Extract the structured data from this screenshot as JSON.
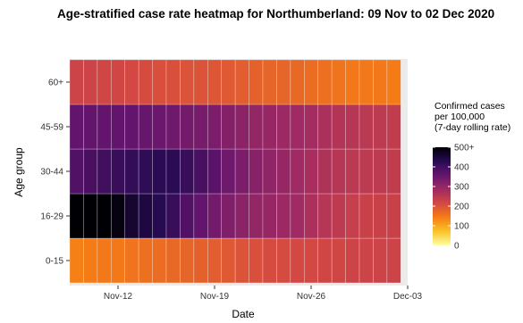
{
  "title": "Age-stratified case rate heatmap for Northumberland: 09 Nov to 02 Dec 2020",
  "chart_data": {
    "type": "heatmap",
    "title": "Age-stratified case rate heatmap for Northumberland: 09 Nov to 02 Dec 2020",
    "xlabel": "Date",
    "ylabel": "Age group",
    "x": [
      "2020-11-09",
      "2020-11-10",
      "2020-11-11",
      "2020-11-12",
      "2020-11-13",
      "2020-11-14",
      "2020-11-15",
      "2020-11-16",
      "2020-11-17",
      "2020-11-18",
      "2020-11-19",
      "2020-11-20",
      "2020-11-21",
      "2020-11-22",
      "2020-11-23",
      "2020-11-24",
      "2020-11-25",
      "2020-11-26",
      "2020-11-27",
      "2020-11-28",
      "2020-11-29",
      "2020-11-30",
      "2020-12-01",
      "2020-12-02"
    ],
    "x_ticks": [
      {
        "date": "2020-11-12",
        "label": "Nov-12"
      },
      {
        "date": "2020-11-19",
        "label": "Nov-19"
      },
      {
        "date": "2020-11-26",
        "label": "Nov-26"
      },
      {
        "date": "2020-12-03",
        "label": "Dec-03"
      }
    ],
    "y": [
      "0-15",
      "16-29",
      "30-44",
      "45-59",
      "60+"
    ],
    "values": {
      "60+": [
        225,
        225,
        220,
        220,
        215,
        210,
        205,
        205,
        200,
        200,
        195,
        190,
        185,
        180,
        175,
        175,
        170,
        165,
        160,
        155,
        150,
        150,
        150,
        145
      ],
      "45-59": [
        360,
        360,
        360,
        360,
        360,
        355,
        350,
        345,
        340,
        335,
        330,
        320,
        310,
        300,
        295,
        290,
        285,
        280,
        270,
        260,
        255,
        250,
        245,
        240
      ],
      "30-44": [
        380,
        390,
        400,
        410,
        415,
        420,
        425,
        425,
        410,
        390,
        370,
        345,
        330,
        315,
        305,
        295,
        285,
        275,
        265,
        255,
        250,
        245,
        245,
        240
      ],
      "16-29": [
        500,
        500,
        500,
        490,
        460,
        445,
        430,
        410,
        380,
        360,
        340,
        325,
        310,
        300,
        295,
        290,
        285,
        270,
        255,
        245,
        235,
        230,
        230,
        230
      ],
      "0-15": [
        140,
        145,
        150,
        150,
        155,
        160,
        165,
        170,
        175,
        180,
        185,
        190,
        200,
        205,
        210,
        210,
        215,
        215,
        220,
        220,
        225,
        225,
        225,
        225
      ]
    },
    "color_scale": {
      "title": [
        "Confirmed cases",
        "per 100,000",
        "(7-day rolling rate)"
      ],
      "range": [
        0,
        500
      ],
      "ticks": [
        "0",
        "100",
        "200",
        "300",
        "400",
        "500+"
      ],
      "stops": [
        "#fcffa4",
        "#fac228",
        "#f57d15",
        "#d44842",
        "#9f2a63",
        "#65156e",
        "#280b53",
        "#000004"
      ]
    },
    "legend_position": "right",
    "grid": true
  }
}
